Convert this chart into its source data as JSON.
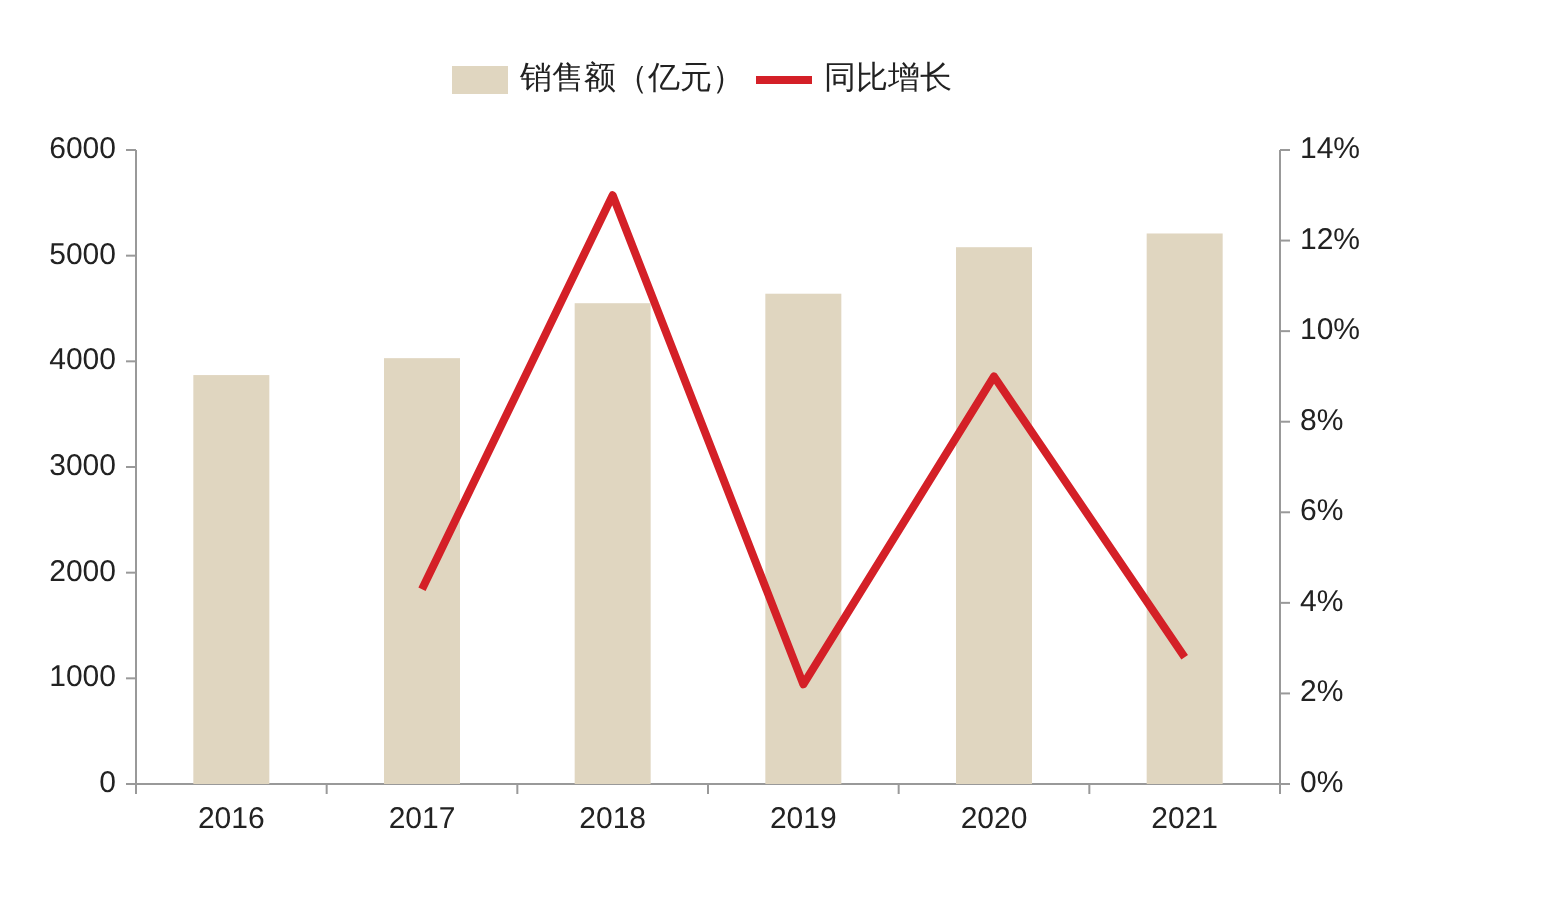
{
  "chart_data": {
    "type": "bar",
    "categories": [
      "2016",
      "2017",
      "2018",
      "2019",
      "2020",
      "2021"
    ],
    "series": [
      {
        "name": "销售额（亿元）",
        "color": "#e0d6c0",
        "values": [
          3870,
          4030,
          4550,
          4640,
          5080,
          5210
        ]
      },
      {
        "name": "同比增长",
        "type": "line",
        "axis": "y2",
        "color": "#d42027",
        "values": [
          null,
          4.3,
          13,
          2.2,
          9,
          2.8
        ]
      }
    ],
    "ylim": [
      0,
      6000
    ],
    "yticks": [
      0,
      1000,
      2000,
      3000,
      4000,
      5000,
      6000
    ],
    "y2lim": [
      0,
      14
    ],
    "y2ticks": [
      {
        "value": 0,
        "label": "0%"
      },
      {
        "value": 2,
        "label": "2%"
      },
      {
        "value": 4,
        "label": "4%"
      },
      {
        "value": 6,
        "label": "6%"
      },
      {
        "value": 8,
        "label": "8%"
      },
      {
        "value": 10,
        "label": "10%"
      },
      {
        "value": 12,
        "label": "12%"
      },
      {
        "value": 14,
        "label": "14%"
      }
    ],
    "grid": false,
    "legend": "top",
    "marker": "none",
    "line_style": "solid"
  }
}
